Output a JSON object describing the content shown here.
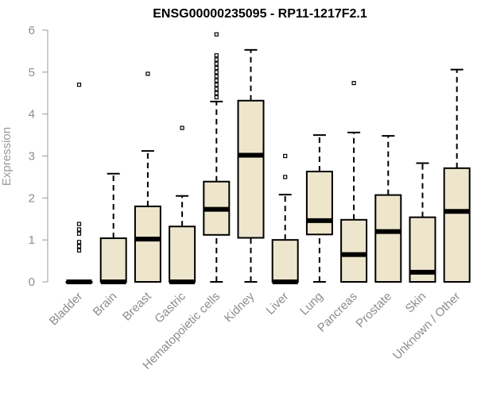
{
  "chart_data": {
    "type": "box",
    "title": "ENSG00000235095 - RP11-1217F2.1",
    "xlabel": "",
    "ylabel": "Expression",
    "ylim": [
      0,
      6
    ],
    "yticks": [
      0,
      1,
      2,
      3,
      4,
      5,
      6
    ],
    "grid": false,
    "legend": "none",
    "categories": [
      "Bladder",
      "Brain",
      "Breast",
      "Gastric",
      "Hematopoietic cells",
      "Kidney",
      "Liver",
      "Lung",
      "Pancreas",
      "Prostate",
      "Skin",
      "Unknown / Other"
    ],
    "boxes": [
      {
        "min": 0,
        "q1": 0,
        "median": 0,
        "q3": 0,
        "max": 0,
        "outliers": [
          0.75,
          0.85,
          0.95,
          1.15,
          1.25,
          1.38,
          4.7
        ]
      },
      {
        "min": 0,
        "q1": 0,
        "median": 0,
        "q3": 1.04,
        "max": 2.58,
        "outliers": []
      },
      {
        "min": 0,
        "q1": 0,
        "median": 1.02,
        "q3": 1.8,
        "max": 3.12,
        "outliers": [
          4.96
        ]
      },
      {
        "min": 0,
        "q1": 0,
        "median": 0,
        "q3": 1.32,
        "max": 2.05,
        "outliers": [
          3.67
        ]
      },
      {
        "min": 0,
        "q1": 1.12,
        "median": 1.73,
        "q3": 2.39,
        "max": 4.3,
        "outliers": [
          4.4,
          4.5,
          4.6,
          4.7,
          4.8,
          4.9,
          5.0,
          5.1,
          5.2,
          5.3,
          5.4,
          5.9
        ]
      },
      {
        "min": 0,
        "q1": 1.05,
        "median": 3.02,
        "q3": 4.32,
        "max": 5.53,
        "outliers": []
      },
      {
        "min": 0,
        "q1": 0,
        "median": 0,
        "q3": 1.0,
        "max": 2.08,
        "outliers": [
          2.5,
          3.0
        ]
      },
      {
        "min": 0,
        "q1": 1.13,
        "median": 1.46,
        "q3": 2.63,
        "max": 3.5,
        "outliers": []
      },
      {
        "min": 0,
        "q1": 0,
        "median": 0.65,
        "q3": 1.48,
        "max": 3.56,
        "outliers": [
          4.74
        ]
      },
      {
        "min": 0,
        "q1": 0,
        "median": 1.2,
        "q3": 2.07,
        "max": 3.48,
        "outliers": []
      },
      {
        "min": 0,
        "q1": 0,
        "median": 0.23,
        "q3": 1.54,
        "max": 2.83,
        "outliers": []
      },
      {
        "min": 0,
        "q1": 0,
        "median": 1.68,
        "q3": 2.71,
        "max": 5.06,
        "outliers": []
      }
    ],
    "colors": {
      "box_fill": "#ede6cc",
      "box_stroke": "#000000",
      "axis": "#9a9a9a",
      "tick_label": "#8c8c8c",
      "title": "#000000"
    }
  }
}
